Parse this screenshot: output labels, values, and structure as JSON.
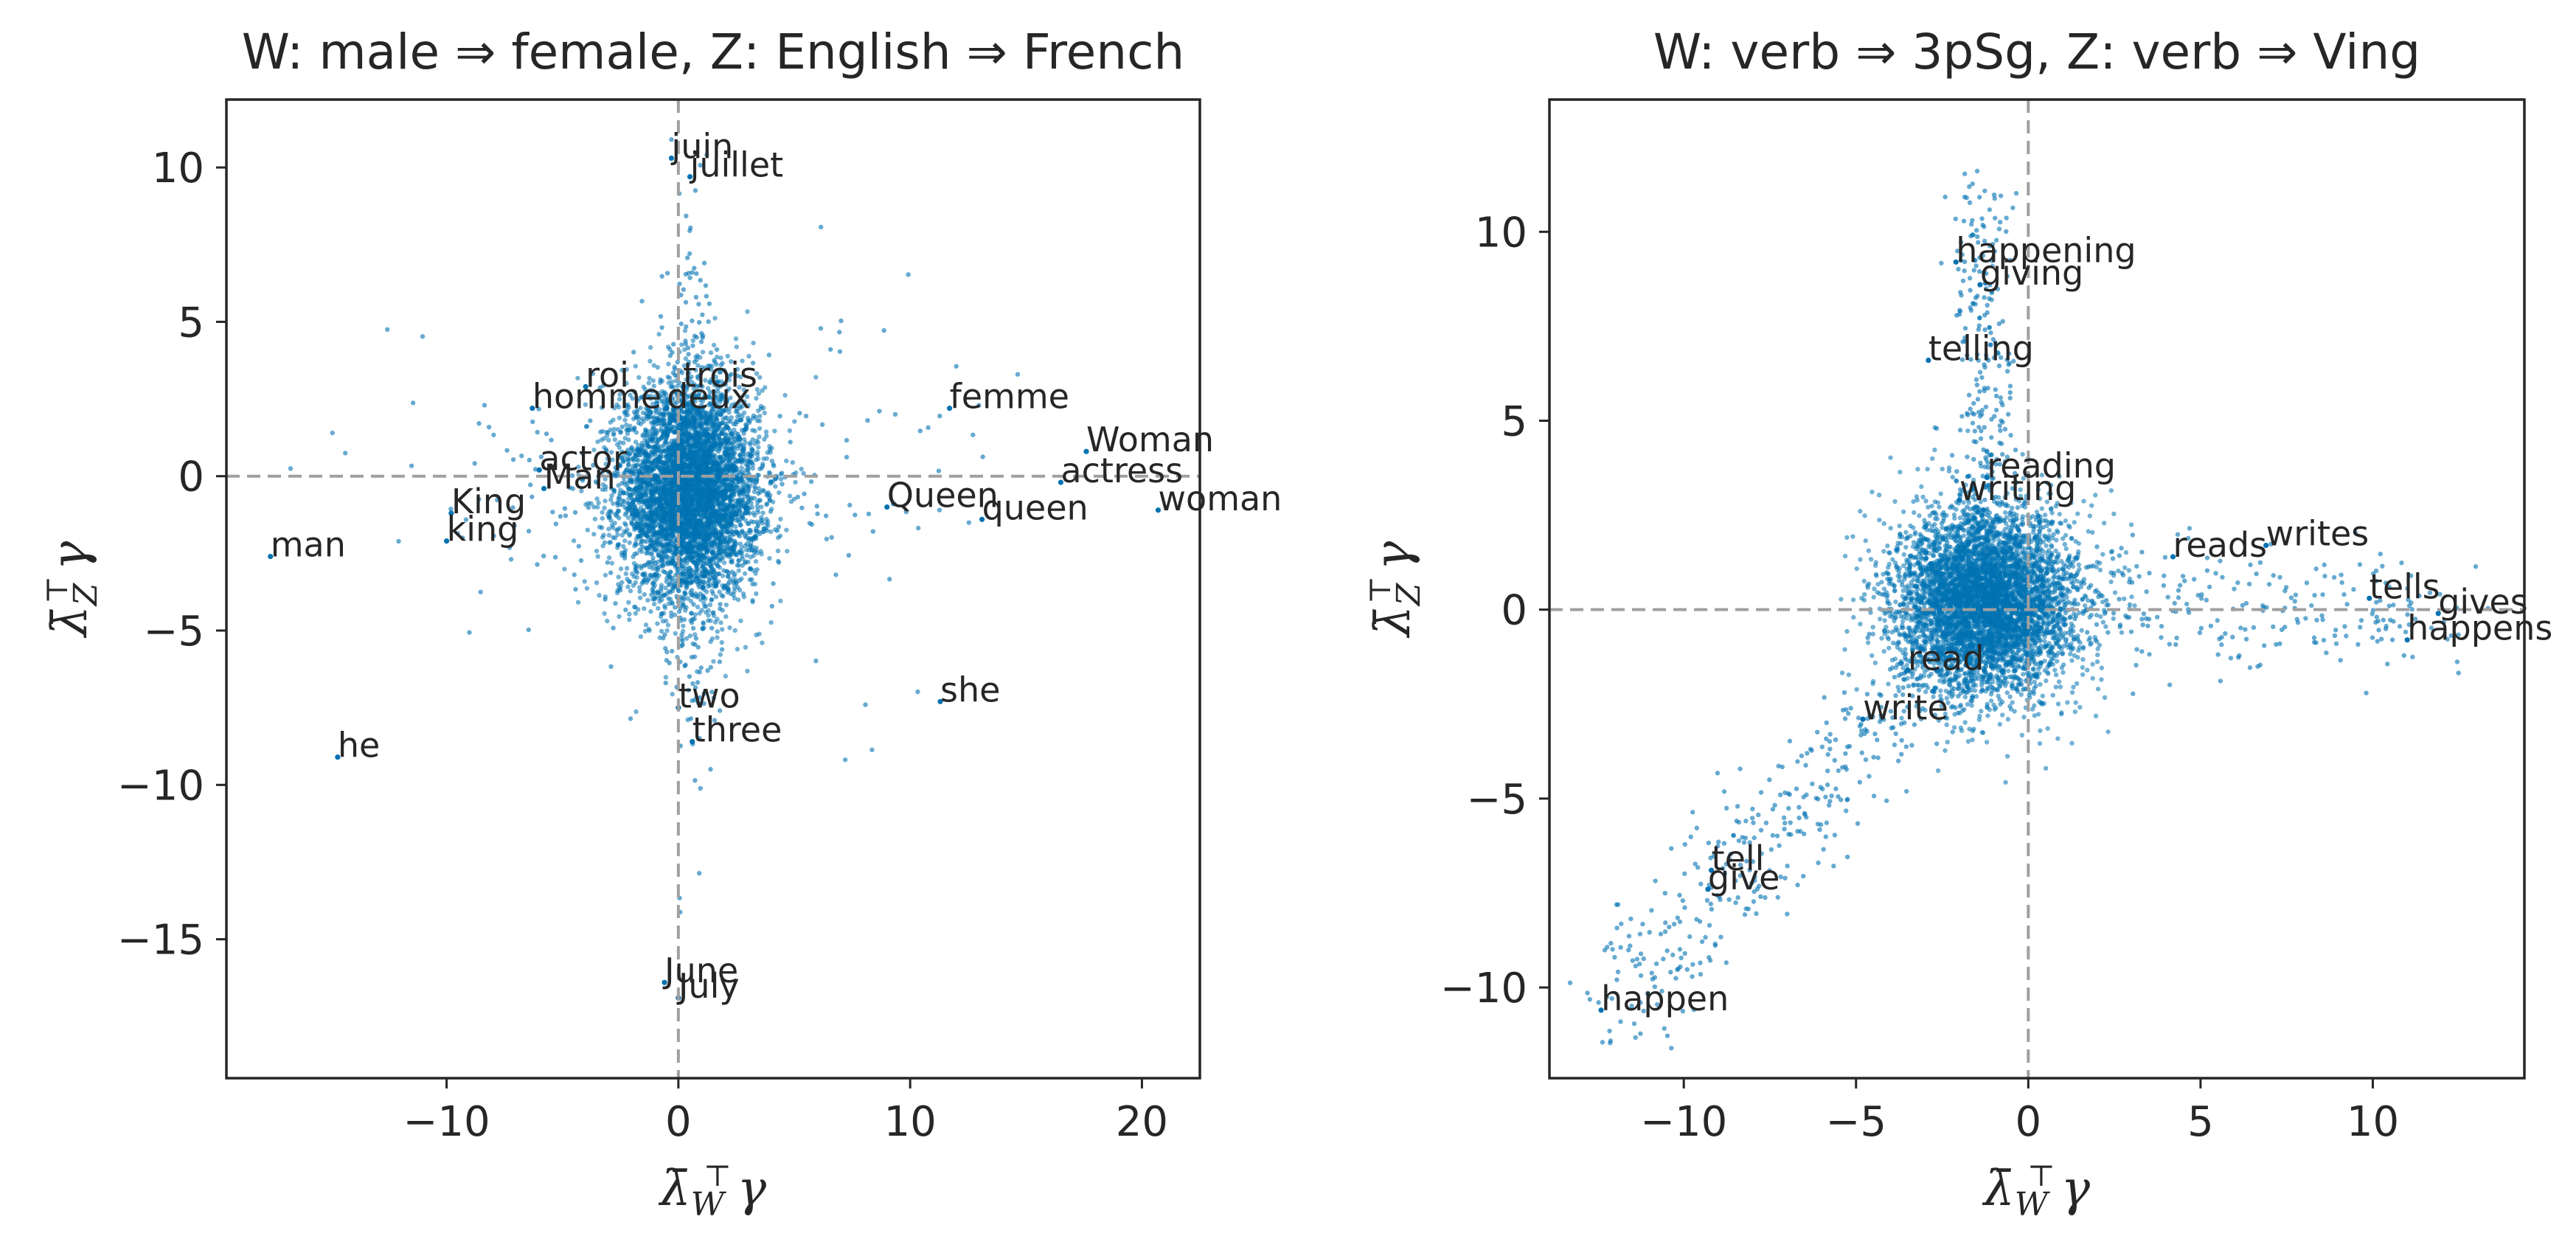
{
  "chart_data": [
    {
      "type": "scatter",
      "title": "W: male ⇒ female, Z: English ⇒ French",
      "xlabel": "λ̄_W^⊤ γ",
      "ylabel": "λ̄_Z^⊤ γ",
      "xlim": [
        -19.5,
        22.5
      ],
      "ylim": [
        -19.5,
        12.2
      ],
      "xticks": [
        -10,
        0,
        10,
        20
      ],
      "xtick_labels": [
        "−10",
        "0",
        "10",
        "20"
      ],
      "yticks": [
        10,
        5,
        0,
        -5,
        -10,
        -15
      ],
      "ytick_labels": [
        "10",
        "5",
        "0",
        "−5",
        "−10",
        "−15"
      ],
      "color": "#0072B2",
      "reference_lines": {
        "x": 0,
        "y": 0,
        "style": "dashed",
        "color": "#a0a0a0"
      },
      "cluster": {
        "center": [
          0.5,
          -0.5
        ],
        "sd": [
          1.5,
          1.7
        ],
        "count": 5200
      },
      "annotations": [
        {
          "text": "juin",
          "x": -0.3,
          "y": 10.3
        },
        {
          "text": "juillet",
          "x": 0.5,
          "y": 9.7
        },
        {
          "text": "roi",
          "x": -4.0,
          "y": 2.9
        },
        {
          "text": "trois",
          "x": 0.2,
          "y": 2.9
        },
        {
          "text": "homme",
          "x": -6.3,
          "y": 2.2
        },
        {
          "text": "deux",
          "x": -0.5,
          "y": 2.2
        },
        {
          "text": "femme",
          "x": 11.7,
          "y": 2.2
        },
        {
          "text": "Woman",
          "x": 17.6,
          "y": 0.8
        },
        {
          "text": "actor",
          "x": -6.0,
          "y": 0.2
        },
        {
          "text": "Man",
          "x": -5.8,
          "y": -0.4
        },
        {
          "text": "actress",
          "x": 16.5,
          "y": -0.2
        },
        {
          "text": "King",
          "x": -9.8,
          "y": -1.2
        },
        {
          "text": "Queen",
          "x": 9.0,
          "y": -1.0
        },
        {
          "text": "queen",
          "x": 13.1,
          "y": -1.4
        },
        {
          "text": "woman",
          "x": 20.7,
          "y": -1.1
        },
        {
          "text": "king",
          "x": -10.0,
          "y": -2.1
        },
        {
          "text": "man",
          "x": -17.6,
          "y": -2.6
        },
        {
          "text": "two",
          "x": 0.0,
          "y": -7.5
        },
        {
          "text": "she",
          "x": 11.3,
          "y": -7.3
        },
        {
          "text": "three",
          "x": 0.6,
          "y": -8.6
        },
        {
          "text": "he",
          "x": -14.7,
          "y": -9.1
        },
        {
          "text": "June",
          "x": -0.6,
          "y": -16.4
        },
        {
          "text": "July",
          "x": 0.0,
          "y": -16.9
        }
      ]
    },
    {
      "type": "scatter",
      "title": "W: verb ⇒ 3pSg, Z: verb ⇒ Ving",
      "xlabel": "λ̄_W^⊤ γ",
      "ylabel": "λ̄_Z^⊤ γ",
      "xlim": [
        -13.9,
        14.4
      ],
      "ylim": [
        -12.4,
        13.5
      ],
      "xticks": [
        -10,
        -5,
        0,
        5,
        10
      ],
      "xtick_labels": [
        "−10",
        "−5",
        "0",
        "5",
        "10"
      ],
      "yticks": [
        10,
        5,
        0,
        -5,
        -10
      ],
      "ytick_labels": [
        "10",
        "5",
        "0",
        "−5",
        "−10"
      ],
      "color": "#0072B2",
      "reference_lines": {
        "x": 0,
        "y": 0,
        "style": "dashed",
        "color": "#a0a0a0"
      },
      "cluster": {
        "center": [
          -1.2,
          0.2
        ],
        "sd": [
          1.3,
          1.2
        ],
        "count": 5200
      },
      "annotations": [
        {
          "text": "happening",
          "x": -2.1,
          "y": 9.2
        },
        {
          "text": "giving",
          "x": -1.4,
          "y": 8.6
        },
        {
          "text": "telling",
          "x": -2.9,
          "y": 6.6
        },
        {
          "text": "reading",
          "x": -1.2,
          "y": 3.5
        },
        {
          "text": "writing",
          "x": -2.0,
          "y": 2.9
        },
        {
          "text": "reads",
          "x": 4.2,
          "y": 1.4
        },
        {
          "text": "writes",
          "x": 6.9,
          "y": 1.7
        },
        {
          "text": "tells",
          "x": 9.9,
          "y": 0.3
        },
        {
          "text": "gives",
          "x": 11.9,
          "y": -0.1
        },
        {
          "text": "happens",
          "x": 11.0,
          "y": -0.8
        },
        {
          "text": "read",
          "x": -3.5,
          "y": -1.6
        },
        {
          "text": "write",
          "x": -4.8,
          "y": -2.9
        },
        {
          "text": "tell",
          "x": -9.2,
          "y": -6.9
        },
        {
          "text": "give",
          "x": -9.3,
          "y": -7.4
        },
        {
          "text": "happen",
          "x": -12.4,
          "y": -10.6
        }
      ]
    }
  ]
}
